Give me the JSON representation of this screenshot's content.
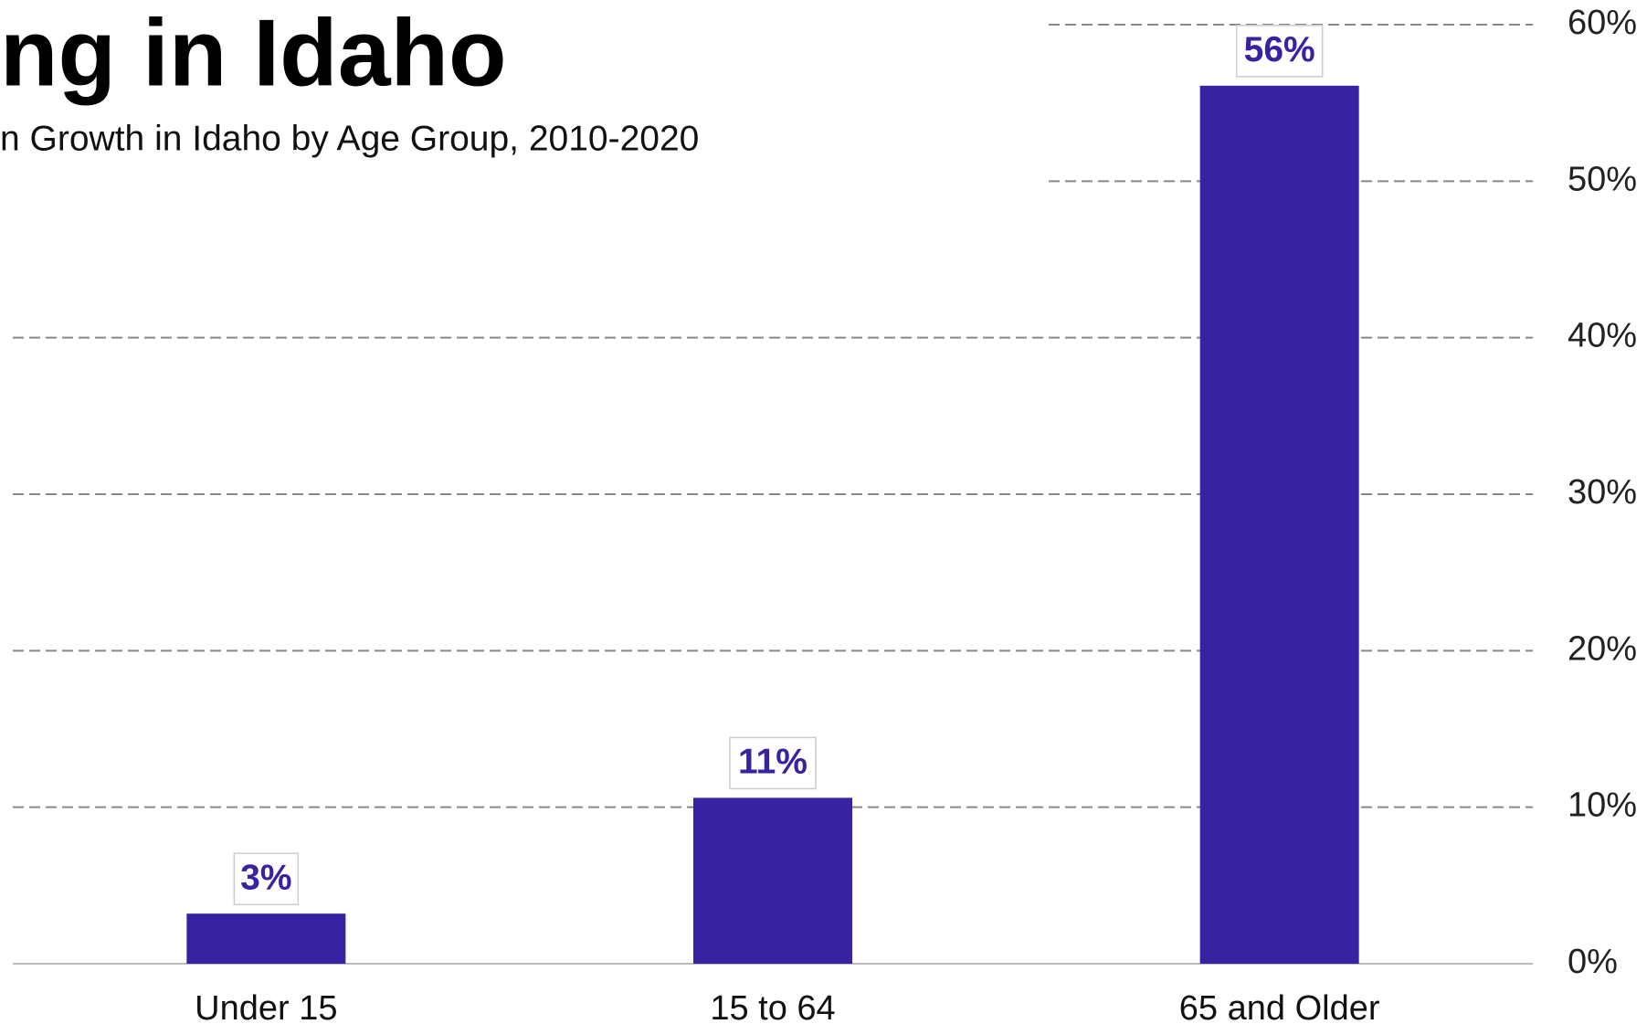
{
  "chart_data": {
    "type": "bar",
    "title": "ng in Idaho",
    "subtitle": "n Growth in Idaho by Age Group, 2010-2020",
    "categories": [
      "Under 15",
      "15 to 64",
      "65 and Older"
    ],
    "values": [
      3.2,
      10.6,
      56.1
    ],
    "value_labels": [
      "3%",
      "11%",
      "56%"
    ],
    "color": "#3722a1",
    "ylim": [
      0,
      60
    ],
    "yticks": [
      {
        "value": 0,
        "label": "0%"
      },
      {
        "value": 10,
        "label": "10%"
      },
      {
        "value": 20,
        "label": "20%"
      },
      {
        "value": 30,
        "label": "30%"
      },
      {
        "value": 40,
        "label": "40%"
      },
      {
        "value": 50,
        "label": "50%"
      },
      {
        "value": 60,
        "label": "60%"
      }
    ],
    "grid": true
  }
}
